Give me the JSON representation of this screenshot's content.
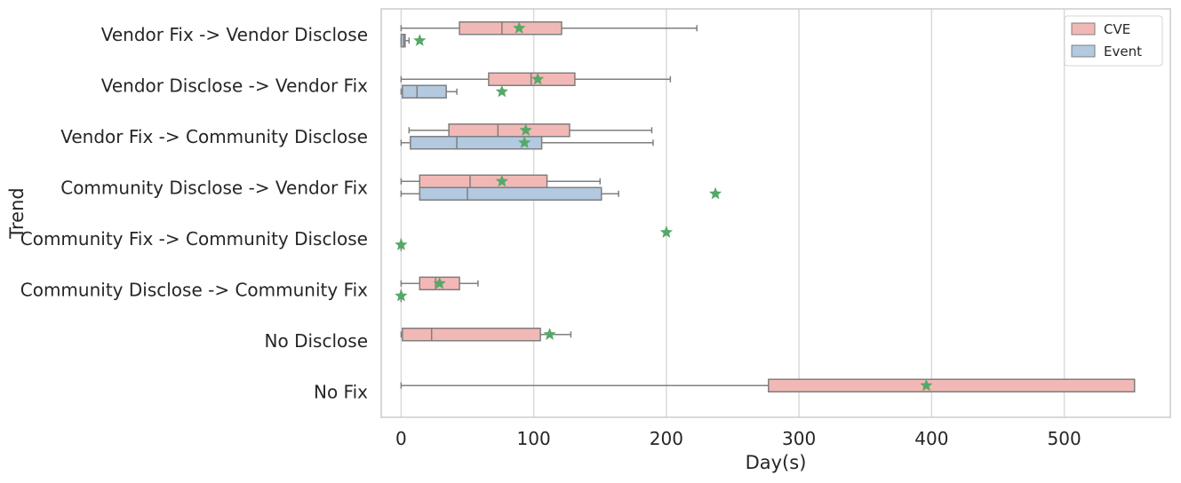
{
  "chart_data": {
    "type": "boxplot",
    "orientation": "horizontal",
    "xlabel": "Day(s)",
    "ylabel": "Trend",
    "xlim": [
      -15,
      580
    ],
    "xticks": [
      0,
      100,
      200,
      300,
      400,
      500
    ],
    "grid": "vertical",
    "legend_position": "top-right",
    "categories": [
      "Vendor Fix -> Vendor Disclose",
      "Vendor Disclose -> Vendor Fix",
      "Vendor Fix -> Community Disclose",
      "Community Disclose -> Vendor Fix",
      "Community Fix -> Community Disclose",
      "Community Disclose -> Community Fix",
      "No Disclose",
      "No Fix"
    ],
    "series": [
      {
        "name": "CVE",
        "color": "#f2b8b5",
        "boxes": [
          {
            "whislo": 0,
            "q1": 44,
            "med": 76,
            "q3": 121,
            "whishi": 223,
            "mean": 89
          },
          {
            "whislo": 0,
            "q1": 66,
            "med": 98,
            "q3": 131,
            "whishi": 203,
            "mean": 103
          },
          {
            "whislo": 6,
            "q1": 36,
            "med": 73,
            "q3": 127,
            "whishi": 189,
            "mean": 94
          },
          {
            "whislo": 0,
            "q1": 14,
            "med": 52,
            "q3": 110,
            "whishi": 150,
            "mean": 76
          },
          null,
          {
            "whislo": 0,
            "q1": 14,
            "med": 26,
            "q3": 44,
            "whishi": 58,
            "mean": 29
          },
          {
            "whislo": 0,
            "q1": 1,
            "med": 23,
            "q3": 105,
            "whishi": 128,
            "mean": 112
          },
          {
            "whislo": 0,
            "q1": 277,
            "med": 553,
            "q3": 553,
            "whishi": 553,
            "mean": 396
          }
        ],
        "extra_means": [
          {
            "category_index": 4,
            "mean": 200
          }
        ]
      },
      {
        "name": "Event",
        "color": "#b3c9e0",
        "boxes": [
          {
            "whislo": 0,
            "q1": 0,
            "med": 2,
            "q3": 3,
            "whishi": 6,
            "mean": 14
          },
          {
            "whislo": 0,
            "q1": 1,
            "med": 12,
            "q3": 34,
            "whishi": 42,
            "mean": 76
          },
          {
            "whislo": 0,
            "q1": 7,
            "med": 42,
            "q3": 106,
            "whishi": 190,
            "mean": 93
          },
          {
            "whislo": 0,
            "q1": 14,
            "med": 50,
            "q3": 151,
            "whishi": 164,
            "mean": 237
          },
          {
            "whislo": 0,
            "q1": 0,
            "med": 0,
            "q3": 0,
            "whishi": 0,
            "mean": 0
          },
          {
            "whislo": 0,
            "q1": 0,
            "med": 0,
            "q3": 0,
            "whishi": 0,
            "mean": 0
          },
          null,
          null
        ]
      }
    ]
  }
}
